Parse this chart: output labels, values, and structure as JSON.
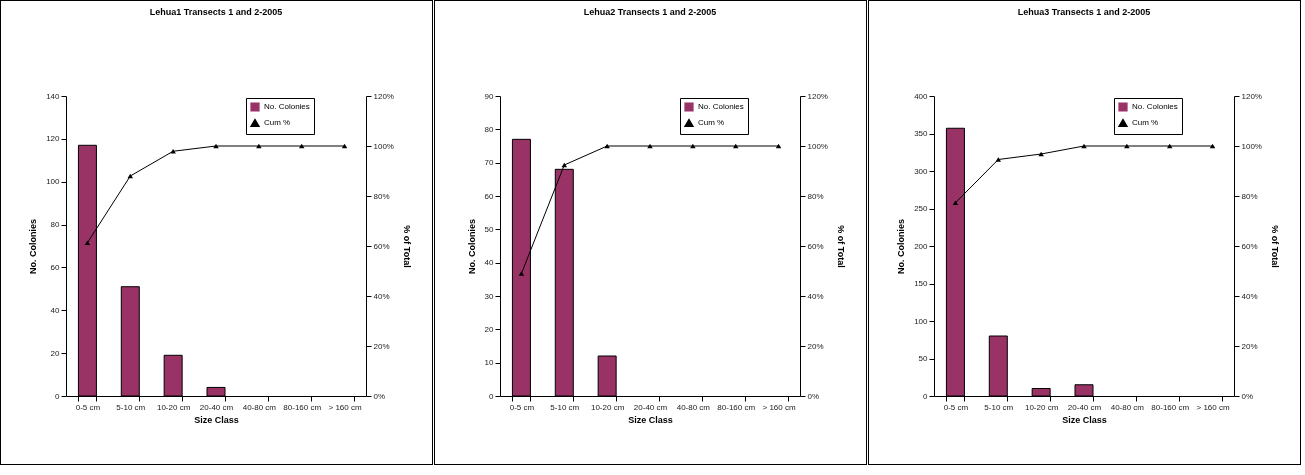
{
  "chart_data": [
    {
      "type": "bar",
      "title": "Lehua1 Transects 1 and 2-2005",
      "xlabel": "Size Class",
      "ylabel": "No. Colonies",
      "y2label": "% of Total",
      "categories": [
        "0-5 cm",
        "5-10 cm",
        "10-20 cm",
        "20-40 cm",
        "40-80 cm",
        "80-160 cm",
        "> 160 cm"
      ],
      "series": [
        {
          "name": "No. Colonies",
          "color": "#993366",
          "values": [
            117,
            51,
            19,
            4,
            0,
            0,
            0
          ]
        },
        {
          "name": "Cum %",
          "type": "line",
          "axis": "y2",
          "color": "#000000",
          "values": [
            61.3,
            88,
            97.9,
            100,
            100,
            100,
            100
          ]
        }
      ],
      "ylim": [
        0,
        140
      ],
      "yticks": [
        0,
        20,
        40,
        60,
        80,
        100,
        120,
        140
      ],
      "y2lim": [
        0,
        120
      ],
      "y2ticks": [
        {
          "value": 0,
          "label": "0%"
        },
        {
          "value": 20,
          "label": "20%"
        },
        {
          "value": 40,
          "label": "40%"
        },
        {
          "value": 60,
          "label": "60%"
        },
        {
          "value": 80,
          "label": "80%"
        },
        {
          "value": 100,
          "label": "100%"
        },
        {
          "value": 120,
          "label": "120%"
        }
      ],
      "legend": "top right",
      "marker": "triangle"
    },
    {
      "type": "bar",
      "title": "Lehua2 Transects 1 and 2-2005",
      "xlabel": "Size Class",
      "ylabel": "No. Colonies",
      "y2label": "% of Total",
      "categories": [
        "0-5 cm",
        "5-10 cm",
        "10-20 cm",
        "20-40 cm",
        "40-80 cm",
        "80-160 cm",
        "> 160 cm"
      ],
      "series": [
        {
          "name": "No. Colonies",
          "color": "#993366",
          "values": [
            77,
            68,
            12,
            0,
            0,
            0,
            0
          ]
        },
        {
          "name": "Cum %",
          "type": "line",
          "axis": "y2",
          "color": "#000000",
          "values": [
            49,
            92.4,
            100,
            100,
            100,
            100,
            100
          ]
        }
      ],
      "ylim": [
        0,
        90
      ],
      "yticks": [
        0,
        10,
        20,
        30,
        40,
        50,
        60,
        70,
        80,
        90
      ],
      "y2lim": [
        0,
        120
      ],
      "y2ticks": [
        {
          "value": 0,
          "label": "0%"
        },
        {
          "value": 20,
          "label": "20%"
        },
        {
          "value": 40,
          "label": "40%"
        },
        {
          "value": 60,
          "label": "60%"
        },
        {
          "value": 80,
          "label": "80%"
        },
        {
          "value": 100,
          "label": "100%"
        },
        {
          "value": 120,
          "label": "120%"
        }
      ],
      "legend": "top right",
      "marker": "triangle"
    },
    {
      "type": "bar",
      "title": "Lehua3 Transects 1 and 2-2005",
      "xlabel": "Size Class",
      "ylabel": "No. Colonies",
      "y2label": "% of Total",
      "categories": [
        "0-5 cm",
        "5-10 cm",
        "10-20 cm",
        "20-40 cm",
        "40-80 cm",
        "80-160 cm",
        "> 160 cm"
      ],
      "series": [
        {
          "name": "No. Colonies",
          "color": "#993366",
          "values": [
            357,
            80,
            10,
            15,
            0,
            0,
            0
          ]
        },
        {
          "name": "Cum %",
          "type": "line",
          "axis": "y2",
          "color": "#000000",
          "values": [
            77.3,
            94.6,
            96.8,
            100,
            100,
            100,
            100
          ]
        }
      ],
      "ylim": [
        0,
        400
      ],
      "yticks": [
        0,
        50,
        100,
        150,
        200,
        250,
        300,
        350,
        400
      ],
      "y2lim": [
        0,
        120
      ],
      "y2ticks": [
        {
          "value": 0,
          "label": "0%"
        },
        {
          "value": 20,
          "label": "20%"
        },
        {
          "value": 40,
          "label": "40%"
        },
        {
          "value": 60,
          "label": "60%"
        },
        {
          "value": 80,
          "label": "80%"
        },
        {
          "value": 100,
          "label": "100%"
        },
        {
          "value": 120,
          "label": "120%"
        }
      ],
      "legend": "top right",
      "marker": "triangle"
    }
  ]
}
